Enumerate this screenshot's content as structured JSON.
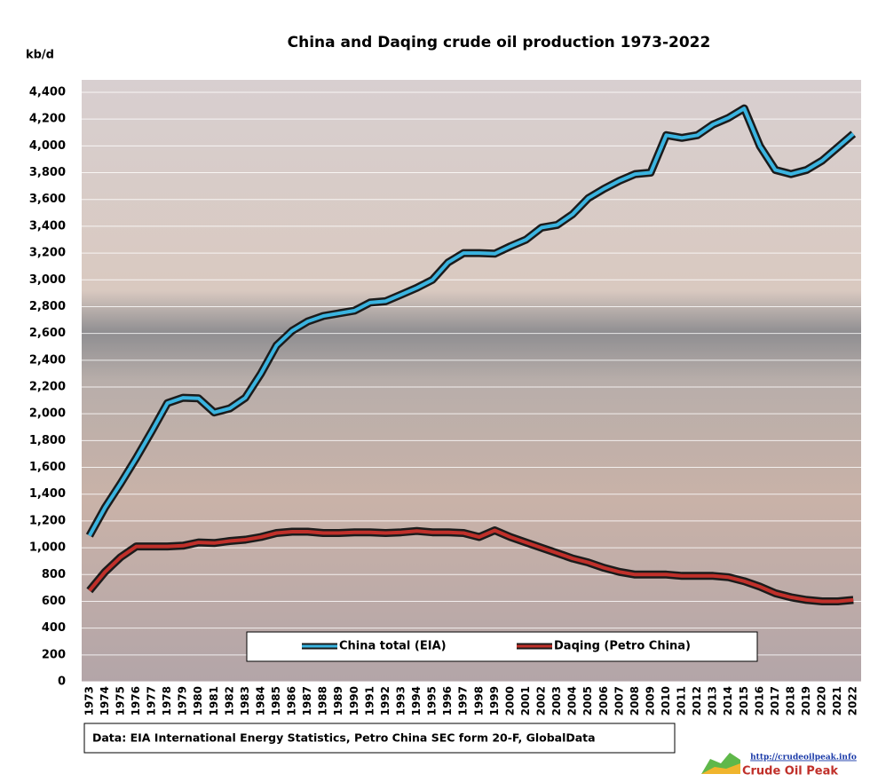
{
  "chart_data": {
    "type": "line",
    "title": "China and Daqing crude oil production 1973-2022",
    "y_label": "kb/d",
    "source": "Data: EIA International Energy Statistics, Petro China SEC form 20-F, GlobalData",
    "logo_url": "http://crudeoilpeak.info",
    "logo_name": "Crude Oil Peak",
    "categories": [
      "1973",
      "1974",
      "1975",
      "1976",
      "1977",
      "1978",
      "1979",
      "1980",
      "1981",
      "1982",
      "1983",
      "1984",
      "1985",
      "1986",
      "1987",
      "1988",
      "1989",
      "1990",
      "1991",
      "1992",
      "1993",
      "1994",
      "1995",
      "1996",
      "1997",
      "1998",
      "1999",
      "2000",
      "2001",
      "2002",
      "2003",
      "2004",
      "2005",
      "2006",
      "2007",
      "2008",
      "2009",
      "2010",
      "2011",
      "2012",
      "2013",
      "2014",
      "2015",
      "2016",
      "2017",
      "2018",
      "2019",
      "2020",
      "2021",
      "2022"
    ],
    "series": [
      {
        "name": "China total (EIA)",
        "color": "#3ab4e0",
        "values": [
          1090,
          1300,
          1480,
          1670,
          1870,
          2080,
          2120,
          2115,
          2010,
          2040,
          2120,
          2300,
          2510,
          2620,
          2690,
          2730,
          2750,
          2770,
          2830,
          2840,
          2890,
          2940,
          3000,
          3130,
          3200,
          3200,
          3195,
          3250,
          3300,
          3390,
          3410,
          3490,
          3610,
          3680,
          3740,
          3790,
          3800,
          4080,
          4060,
          4080,
          4160,
          4210,
          4280,
          4000,
          3820,
          3790,
          3820,
          3890,
          3990,
          4090
        ]
      },
      {
        "name": "Daqing (Petro China)",
        "color": "#c0302a",
        "values": [
          680,
          820,
          930,
          1010,
          1010,
          1010,
          1015,
          1040,
          1035,
          1050,
          1060,
          1080,
          1110,
          1120,
          1120,
          1110,
          1110,
          1115,
          1115,
          1110,
          1115,
          1125,
          1115,
          1115,
          1110,
          1080,
          1130,
          1080,
          1040,
          1000,
          960,
          920,
          890,
          850,
          820,
          800,
          800,
          800,
          790,
          790,
          790,
          780,
          750,
          710,
          660,
          630,
          610,
          600,
          600,
          610
        ]
      }
    ],
    "ylim": [
      0,
      4400
    ],
    "yticks": [
      0,
      200,
      400,
      600,
      800,
      {
        "value": 1000,
        "label": "1,000"
      },
      {
        "value": 1200,
        "label": "1,200"
      },
      {
        "value": 1400,
        "label": "1,400"
      },
      {
        "value": 1600,
        "label": "1,600"
      },
      {
        "value": 1800,
        "label": "1,800"
      },
      {
        "value": 2000,
        "label": "2,000"
      },
      {
        "value": 2200,
        "label": "2,200"
      },
      {
        "value": 2400,
        "label": "2,400"
      },
      {
        "value": 2600,
        "label": "2,600"
      },
      {
        "value": 2800,
        "label": "2,800"
      },
      {
        "value": 3000,
        "label": "3,000"
      },
      {
        "value": 3200,
        "label": "3,200"
      },
      {
        "value": 3400,
        "label": "3,400"
      },
      {
        "value": 3600,
        "label": "3,600"
      },
      {
        "value": 3800,
        "label": "3,800"
      },
      {
        "value": 4000,
        "label": "4,000"
      },
      {
        "value": 4200,
        "label": "4,200"
      },
      {
        "value": 4400,
        "label": "4,400"
      }
    ],
    "grid": true,
    "legend": "bottom"
  }
}
